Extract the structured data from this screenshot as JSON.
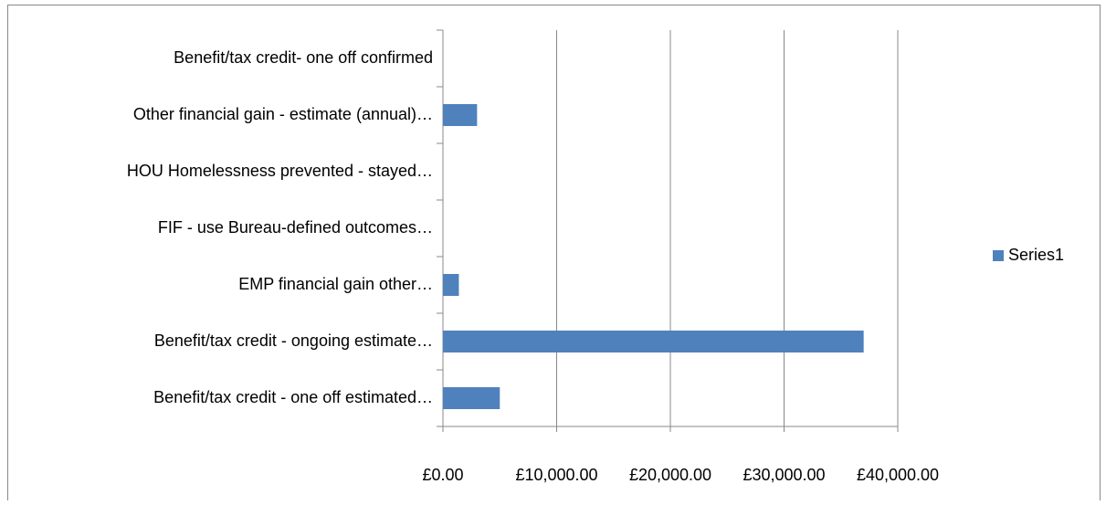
{
  "chart_data": {
    "type": "bar",
    "orientation": "horizontal",
    "categories": [
      "Benefit/tax credit - one off estimated…",
      "Benefit/tax credit - ongoing estimate…",
      "EMP financial gain other…",
      "FIF - use Bureau-defined outcomes…",
      "HOU Homelessness prevented - stayed…",
      "Other financial gain - estimate (annual)…",
      "Benefit/tax credit- one off confirmed"
    ],
    "series": [
      {
        "name": "Series1",
        "color": "#4f81bd",
        "values": [
          5000,
          37000,
          1400,
          0,
          0,
          3000,
          0
        ]
      }
    ],
    "xlim": [
      0,
      40000
    ],
    "xticks": [
      {
        "value": 0,
        "label": "£0.00"
      },
      {
        "value": 10000,
        "label": "£10,000.00"
      },
      {
        "value": 20000,
        "label": "£20,000.00"
      },
      {
        "value": 30000,
        "label": "£30,000.00"
      },
      {
        "value": 40000,
        "label": "£40,000.00"
      }
    ],
    "grid": true,
    "legend": "right"
  }
}
